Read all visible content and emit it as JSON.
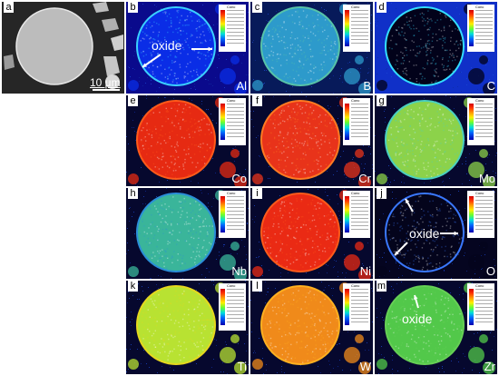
{
  "figure": {
    "panels": [
      {
        "id": "a",
        "label": "a",
        "element": "",
        "kind": "sem",
        "scale_text": "10 μm"
      },
      {
        "id": "b",
        "label": "b",
        "element": "Al",
        "kind": "map",
        "bg": "#0a0a8c",
        "disc": "#0a2de6",
        "disc_edge": "#3ad0ff",
        "annotation": "oxide"
      },
      {
        "id": "c",
        "label": "c",
        "element": "B",
        "kind": "map",
        "bg": "#071a5a",
        "disc": "#2d9acb",
        "disc_edge": "#57c3a8"
      },
      {
        "id": "d",
        "label": "d",
        "element": "C",
        "kind": "map",
        "bg": "#1030c8",
        "disc": "#02021a",
        "disc_edge": "#33ddff"
      },
      {
        "id": "e",
        "label": "e",
        "element": "Co",
        "kind": "map",
        "bg": "#06082e",
        "disc": "#e62a12",
        "disc_edge": "#ff5a1a"
      },
      {
        "id": "f",
        "label": "f",
        "element": "Cr",
        "kind": "map",
        "bg": "#06082e",
        "disc": "#e8331a",
        "disc_edge": "#ff7a22"
      },
      {
        "id": "g",
        "label": "g",
        "element": "Mo",
        "kind": "map",
        "bg": "#06082e",
        "disc": "#8cd24a",
        "disc_edge": "#4ad0c0"
      },
      {
        "id": "h",
        "label": "h",
        "element": "Nb",
        "kind": "map",
        "bg": "#06082e",
        "disc": "#3ab59a",
        "disc_edge": "#2a8ed8"
      },
      {
        "id": "i",
        "label": "i",
        "element": "Ni",
        "kind": "map",
        "bg": "#06082e",
        "disc": "#ea2a14",
        "disc_edge": "#ff5a1a"
      },
      {
        "id": "j",
        "label": "j",
        "element": "O",
        "kind": "map",
        "bg": "#050520",
        "disc": "#04041c",
        "disc_edge": "#3a78ff",
        "annotation": "oxide"
      },
      {
        "id": "k",
        "label": "k",
        "element": "Ti",
        "kind": "map",
        "bg": "#06082e",
        "disc": "#b8e232",
        "disc_edge": "#e6d81e"
      },
      {
        "id": "l",
        "label": "l",
        "element": "W",
        "kind": "map",
        "bg": "#06082e",
        "disc": "#f08a1a",
        "disc_edge": "#ffb020"
      },
      {
        "id": "m",
        "label": "m",
        "element": "Zr",
        "kind": "map",
        "bg": "#06082e",
        "disc": "#52c84a",
        "disc_edge": "#66d055",
        "annotation": "oxide"
      }
    ],
    "colorbar_header": "Conc"
  }
}
